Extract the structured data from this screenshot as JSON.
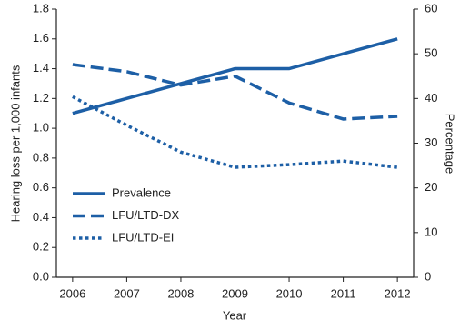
{
  "chart_data": {
    "type": "line",
    "x_label": "Year",
    "y_label": "Hearing loss per 1,000 infants",
    "y2_label": "Percentage",
    "x": [
      2006,
      2007,
      2008,
      2009,
      2010,
      2011,
      2012
    ],
    "xlim": [
      2005.7,
      2012.3
    ],
    "xticks": [
      2006,
      2007,
      2008,
      2009,
      2010,
      2011,
      2012
    ],
    "ylim": [
      0,
      1.8
    ],
    "yticks": [
      {
        "value": 0,
        "label": "0.0"
      },
      0.2,
      0.4,
      0.6,
      0.8,
      {
        "value": 1,
        "label": "1.0"
      },
      1.2,
      1.4,
      1.6,
      1.8
    ],
    "y2lim": [
      0,
      60
    ],
    "y2ticks": [
      0,
      10,
      20,
      30,
      40,
      50,
      60
    ],
    "legend": "lower-left",
    "series": [
      {
        "name": "Prevalence",
        "color": "#1d5fa6",
        "style": "solid",
        "values": [
          1.1,
          1.2,
          1.3,
          1.4,
          1.4,
          1.5,
          1.6
        ]
      },
      {
        "name": "LFU/LTD-DX",
        "color": "#1d5fa6",
        "style": "dashed",
        "axis": "y2",
        "values": [
          47.6,
          46,
          43,
          45,
          39,
          35.4,
          36
        ]
      },
      {
        "name": "LFU/LTD-EI",
        "color": "#1d5fa6",
        "style": "dotted",
        "axis": "y2",
        "values": [
          40.4,
          34,
          28,
          24.6,
          25.2,
          26,
          24.6
        ]
      }
    ]
  }
}
